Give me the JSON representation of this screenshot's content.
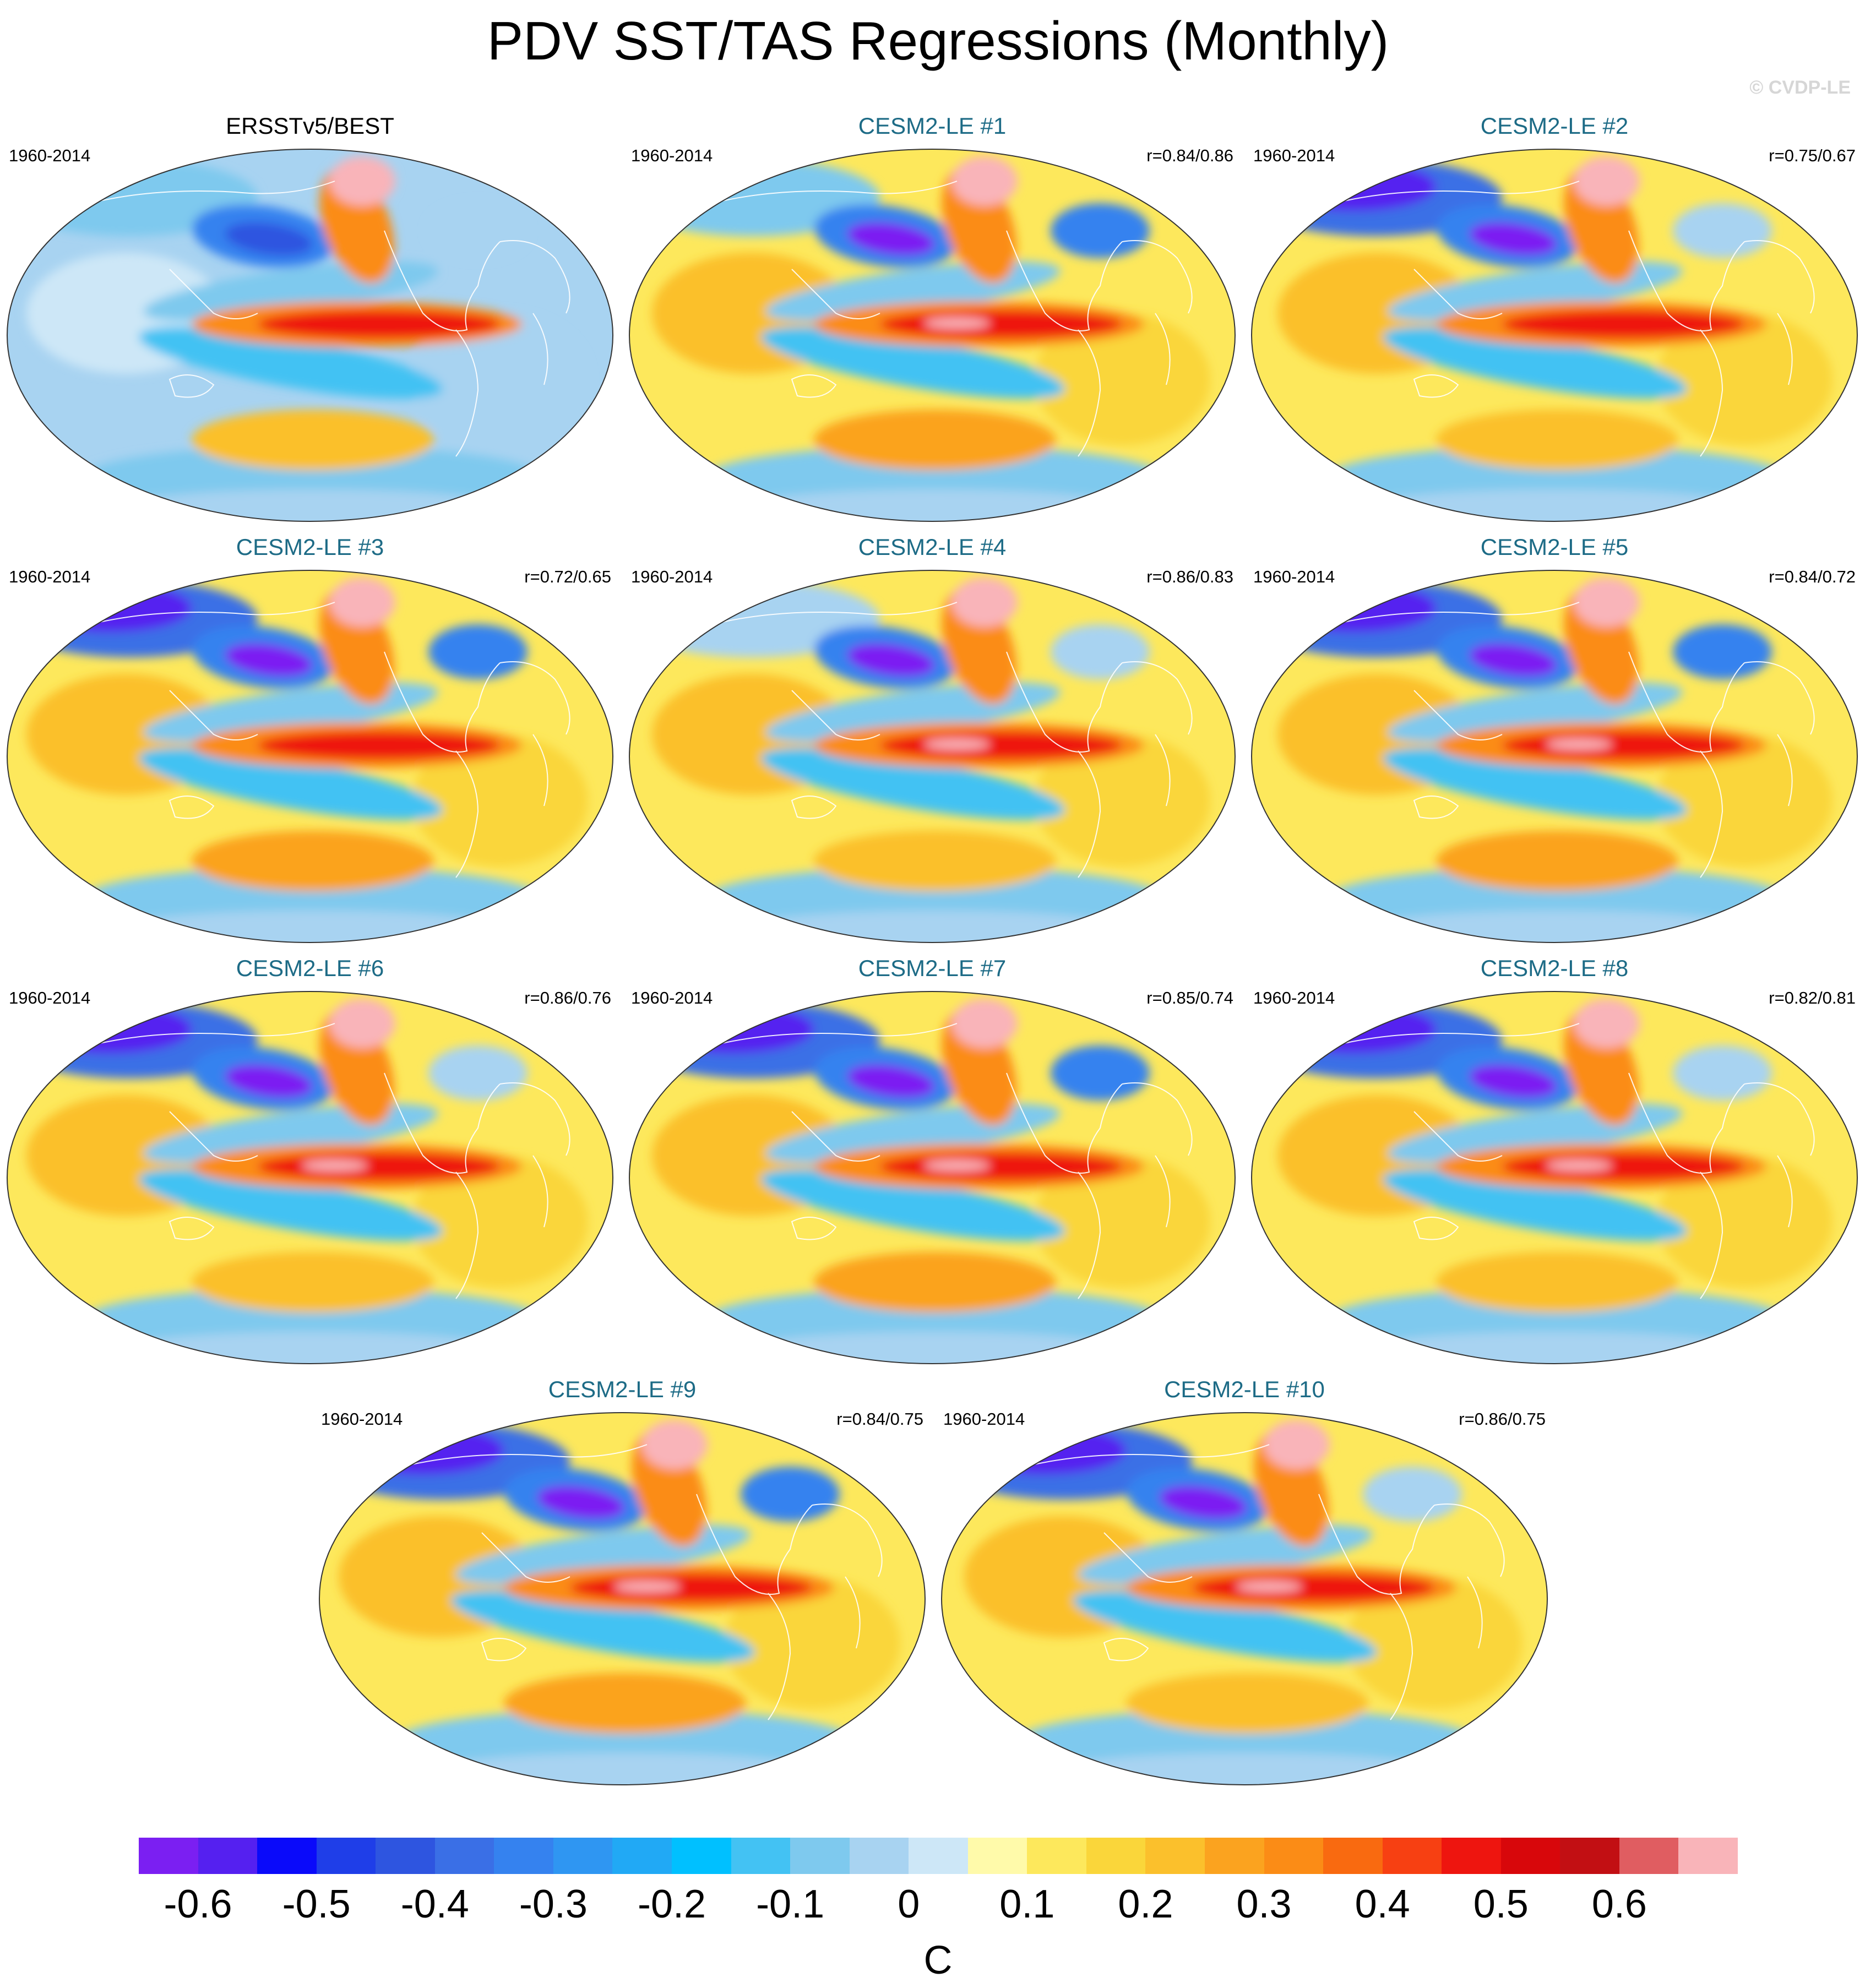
{
  "title": "PDV SST/TAS Regressions (Monthly)",
  "watermark": "© CVDP-LE",
  "panels": [
    {
      "name": "ERSSTv5/BEST",
      "years": "1960-2014",
      "corr": "",
      "kind": "obs",
      "variant": 0
    },
    {
      "name": "CESM2-LE #1",
      "years": "1960-2014",
      "corr": "r=0.84/0.86",
      "kind": "model",
      "variant": 1
    },
    {
      "name": "CESM2-LE #2",
      "years": "1960-2014",
      "corr": "r=0.75/0.67",
      "kind": "model",
      "variant": 2
    },
    {
      "name": "CESM2-LE #3",
      "years": "1960-2014",
      "corr": "r=0.72/0.65",
      "kind": "model",
      "variant": 3
    },
    {
      "name": "CESM2-LE #4",
      "years": "1960-2014",
      "corr": "r=0.86/0.83",
      "kind": "model",
      "variant": 4
    },
    {
      "name": "CESM2-LE #5",
      "years": "1960-2014",
      "corr": "r=0.84/0.72",
      "kind": "model",
      "variant": 5
    },
    {
      "name": "CESM2-LE #6",
      "years": "1960-2014",
      "corr": "r=0.86/0.76",
      "kind": "model",
      "variant": 6
    },
    {
      "name": "CESM2-LE #7",
      "years": "1960-2014",
      "corr": "r=0.85/0.74",
      "kind": "model",
      "variant": 7
    },
    {
      "name": "CESM2-LE #8",
      "years": "1960-2014",
      "corr": "r=0.82/0.81",
      "kind": "model",
      "variant": 8
    },
    {
      "name": "CESM2-LE #9",
      "years": "1960-2014",
      "corr": "r=0.84/0.75",
      "kind": "model",
      "variant": 9
    },
    {
      "name": "CESM2-LE #10",
      "years": "1960-2014",
      "corr": "r=0.86/0.75",
      "kind": "model",
      "variant": 10
    }
  ],
  "colorbar": {
    "colors": [
      "#7b1ff2",
      "#5520f0",
      "#0a0afa",
      "#1f3ee8",
      "#2e55e0",
      "#3a6fe6",
      "#3582ef",
      "#2f96f2",
      "#21a9f5",
      "#00c0ff",
      "#43c2f3",
      "#7ec9ee",
      "#a8d3f1",
      "#cde7f7",
      "#fffaaa",
      "#fde85c",
      "#fad63a",
      "#fbc02c",
      "#fba31f",
      "#fb8c16",
      "#f96a10",
      "#f74012",
      "#ee150f",
      "#d8070b",
      "#c20f13",
      "#e05d61",
      "#f9b4b9"
    ],
    "labels": [
      "-0.6",
      "-0.5",
      "-0.4",
      "-0.3",
      "-0.2",
      "-0.1",
      "0",
      "0.1",
      "0.2",
      "0.3",
      "0.4",
      "0.5",
      "0.6"
    ],
    "units": "C"
  }
}
